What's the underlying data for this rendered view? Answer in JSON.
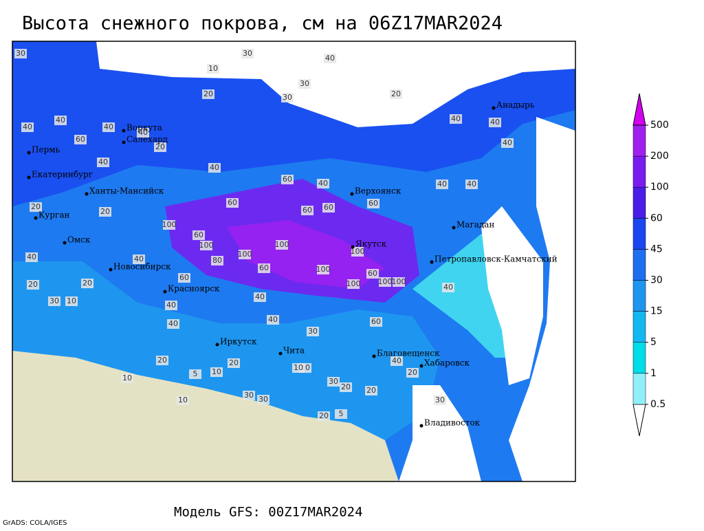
{
  "header": {
    "title": "Высота снежного покрова, см на 06Z17MAR2024"
  },
  "footer": {
    "model": "Модель GFS: 00Z17MAR2024",
    "credit": "GrADS: COLA/IGES"
  },
  "legend": {
    "levels": [
      0.5,
      1,
      5,
      15,
      30,
      45,
      60,
      100,
      200,
      500
    ],
    "colors": [
      "#ffffff",
      "#90f0fa",
      "#00dce8",
      "#14b8f0",
      "#1e96f0",
      "#1e6ef0",
      "#1a46f0",
      "#4a1ee8",
      "#7a1cf0",
      "#a020f0",
      "#d400f0"
    ]
  },
  "cities": [
    "Анадырь",
    "Воркута",
    "Салехард",
    "Пермь",
    "Екатеринбург",
    "Ханты-Мансийск",
    "Верхоянск",
    "Курган",
    "Магадан",
    "Омск",
    "Якутск",
    "Петропавловск-Камчатский",
    "Новосибирск",
    "Красноярск",
    "Иркутск",
    "Чита",
    "Благовещенск",
    "Хабаровск",
    "Владивосток"
  ],
  "map_labels": [
    30,
    40,
    10,
    20,
    30,
    40,
    30,
    20,
    30,
    40,
    40,
    40,
    60,
    40,
    20,
    40,
    40,
    60,
    20,
    40,
    40,
    40,
    60,
    60,
    60,
    60,
    100,
    100,
    60,
    100,
    100,
    80,
    100,
    100,
    100,
    40,
    20,
    40,
    100,
    100,
    60,
    60,
    40,
    40,
    20,
    10,
    20,
    30,
    40,
    40,
    60,
    30,
    20,
    20,
    10,
    5,
    10,
    20,
    30,
    20,
    10,
    40,
    30,
    10,
    20,
    5,
    10,
    30,
    20,
    40,
    40,
    40,
    30,
    60
  ]
}
